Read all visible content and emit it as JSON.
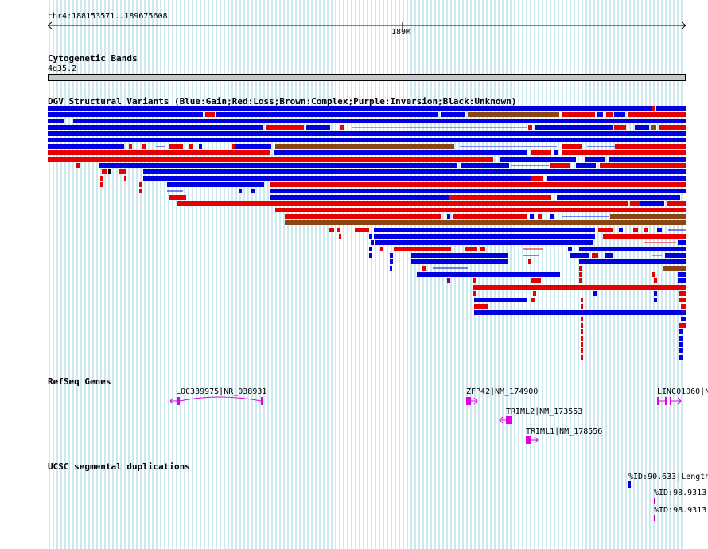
{
  "ruler": {
    "coords": "chr4:188153571..189675608",
    "center_label": "189M"
  },
  "cytoband": {
    "title": "Cytogenetic Bands",
    "band": "4q35.2"
  },
  "dgv": {
    "title": "DGV Structural Variants (Blue:Gain;Red:Loss;Brown:Complex;Purple:Inversion;Black:Unknown)"
  },
  "refseq": {
    "title": "RefSeq Genes",
    "genes": [
      {
        "label": "LOC339975|NR_038931",
        "color": "#e000e0"
      },
      {
        "label": "ZFP42|NM_174900",
        "color": "#e000e0"
      },
      {
        "label": "TRIML2|NM_173553",
        "color": "#e000e0"
      },
      {
        "label": "TRIML1|NM_178556",
        "color": "#e000e0"
      },
      {
        "label": "LINC01060|N",
        "color": "#e000e0"
      }
    ]
  },
  "segdups": {
    "title": "UCSC segmental duplications",
    "items": [
      {
        "label": "%ID:90.633|Length"
      },
      {
        "label": "%ID:98.9313"
      },
      {
        "label": "%ID:98.9313"
      }
    ]
  },
  "colors": {
    "gain": "#0000e0",
    "loss": "#e80000",
    "complex": "#8b4513",
    "inversion": "#7a007a",
    "unknown": "#000000",
    "grid": "#9ed0e0",
    "gene": "#e000e0"
  }
}
